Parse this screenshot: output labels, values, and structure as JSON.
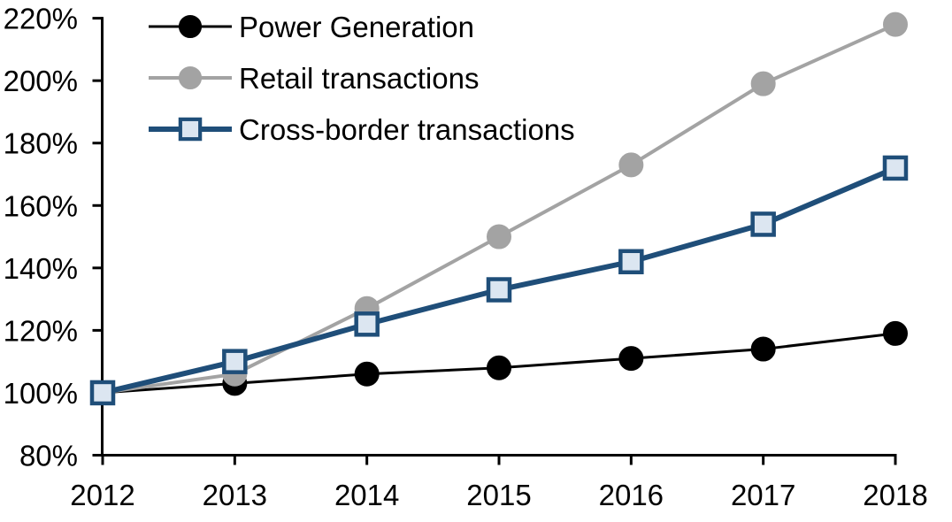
{
  "chart_data": {
    "type": "line",
    "title": "",
    "xlabel": "",
    "ylabel": "",
    "x_categories": [
      "2012",
      "2013",
      "2014",
      "2015",
      "2016",
      "2017",
      "2018"
    ],
    "series": [
      {
        "name": "Power Generation",
        "values": [
          100,
          103,
          106,
          108,
          111,
          114,
          119
        ],
        "color": "#000000",
        "marker": "circle",
        "marker_fill": "#000000",
        "marker_stroke": "#000000",
        "line_width": 3
      },
      {
        "name": "Retail transactions",
        "values": [
          100,
          106,
          127,
          150,
          173,
          199,
          218
        ],
        "color": "#A3A3A3",
        "marker": "circle",
        "marker_fill": "#A3A3A3",
        "marker_stroke": "#A3A3A3",
        "line_width": 4
      },
      {
        "name": "Cross-border transactions",
        "values": [
          100,
          110,
          122,
          133,
          142,
          154,
          172
        ],
        "color": "#1F4E79",
        "marker": "square",
        "marker_fill": "#DCE6F1",
        "marker_stroke": "#1F4E79",
        "line_width": 6
      }
    ],
    "ylim": [
      80,
      220
    ],
    "ytick_step": 20,
    "ytick_labels": [
      "80%",
      "100%",
      "120%",
      "140%",
      "160%",
      "180%",
      "200%",
      "220%"
    ],
    "xtick_labels": [
      "2012",
      "2013",
      "2014",
      "2015",
      "2016",
      "2017",
      "2018"
    ],
    "axis_color": "#000000",
    "grid": false,
    "legend_position": "top-left"
  }
}
